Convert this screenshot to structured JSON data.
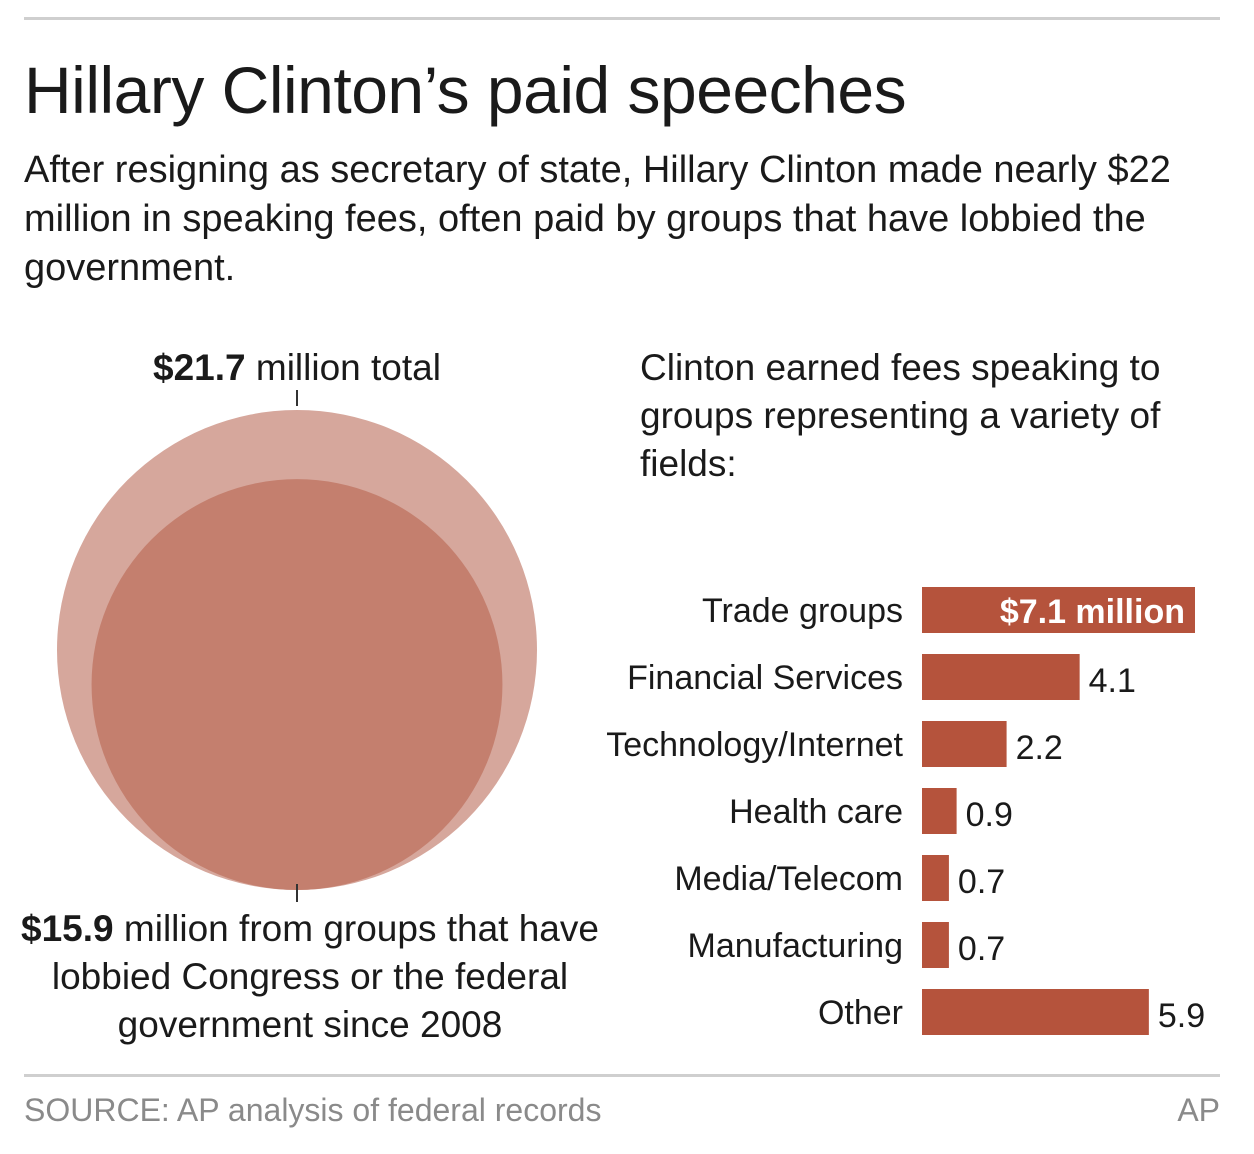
{
  "title": "Hillary Clinton’s paid speeches",
  "subtitle": "After resigning as secretary of state, Hillary Clinton made nearly $22 million in speaking fees, often paid by groups that have lobbied the government.",
  "bubbles": {
    "total_value": "$21.7",
    "total_text": " million total",
    "lobby_value": "$15.9",
    "lobby_text": " million from groups that have lobbied Congress or the federal government since 2008",
    "colors": {
      "total": "#d6a79c",
      "lobby": "#c47f6e"
    }
  },
  "intro": "Clinton earned fees speaking to groups representing a variety of fields:",
  "source": "SOURCE: AP analysis of federal records",
  "credit": "AP",
  "chart_data": [
    {
      "type": "bubble",
      "values": [
        21.7,
        15.9
      ],
      "labels": [
        "$21.7 million total",
        "$15.9 million from groups that have lobbied Congress or the federal government since 2008"
      ],
      "units": "million $"
    },
    {
      "type": "bar",
      "orientation": "horizontal",
      "categories": [
        "Trade groups",
        "Financial Services",
        "Technology/Internet",
        "Health care",
        "Media/Telecom",
        "Manufacturing",
        "Other"
      ],
      "values": [
        7.1,
        4.1,
        2.2,
        0.9,
        0.7,
        0.7,
        5.9
      ],
      "data_labels": [
        "$7.1 million",
        "4.1",
        "2.2",
        "0.9",
        "0.7",
        "0.7",
        "5.9"
      ],
      "bar_color": "#b5533c",
      "grid": false
    }
  ]
}
